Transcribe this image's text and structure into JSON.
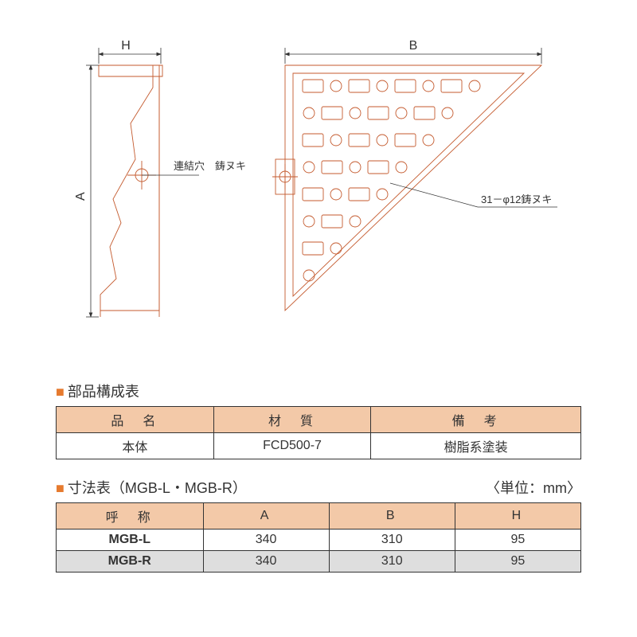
{
  "diagram": {
    "side_view": {
      "dim_H_label": "H",
      "dim_A_label": "A",
      "hole_label": "連結穴　鋳ヌキ"
    },
    "top_view": {
      "dim_B_label": "B",
      "hole_note": "31－φ12鋳ヌキ"
    },
    "stroke_color": "#c45a2e",
    "stroke_width": 0.9,
    "dim_line_color": "#333333"
  },
  "tables": {
    "parts": {
      "title": "部品構成表",
      "bullet": "■",
      "columns": [
        "品　名",
        "材　質",
        "備　考"
      ],
      "col_widths": [
        "30%",
        "30%",
        "40%"
      ],
      "header_bg": "#f3c9a8",
      "rows": [
        {
          "cells": [
            "本体",
            "FCD500-7",
            "樹脂系塗装"
          ],
          "bg": "#ffffff"
        }
      ]
    },
    "dimensions": {
      "title": "寸法表（MGB-L・MGB-R）",
      "bullet": "■",
      "unit": "〈単位：mm〉",
      "columns": [
        "呼　称",
        "A",
        "B",
        "H"
      ],
      "col_widths": [
        "28%",
        "24%",
        "24%",
        "24%"
      ],
      "header_bg": "#f3c9a8",
      "rows": [
        {
          "cells": [
            "MGB-L",
            "340",
            "310",
            "95"
          ],
          "bg": "#ffffff",
          "first_bold": true
        },
        {
          "cells": [
            "MGB-R",
            "340",
            "310",
            "95"
          ],
          "bg": "#dedede",
          "first_bold": true
        }
      ]
    }
  }
}
